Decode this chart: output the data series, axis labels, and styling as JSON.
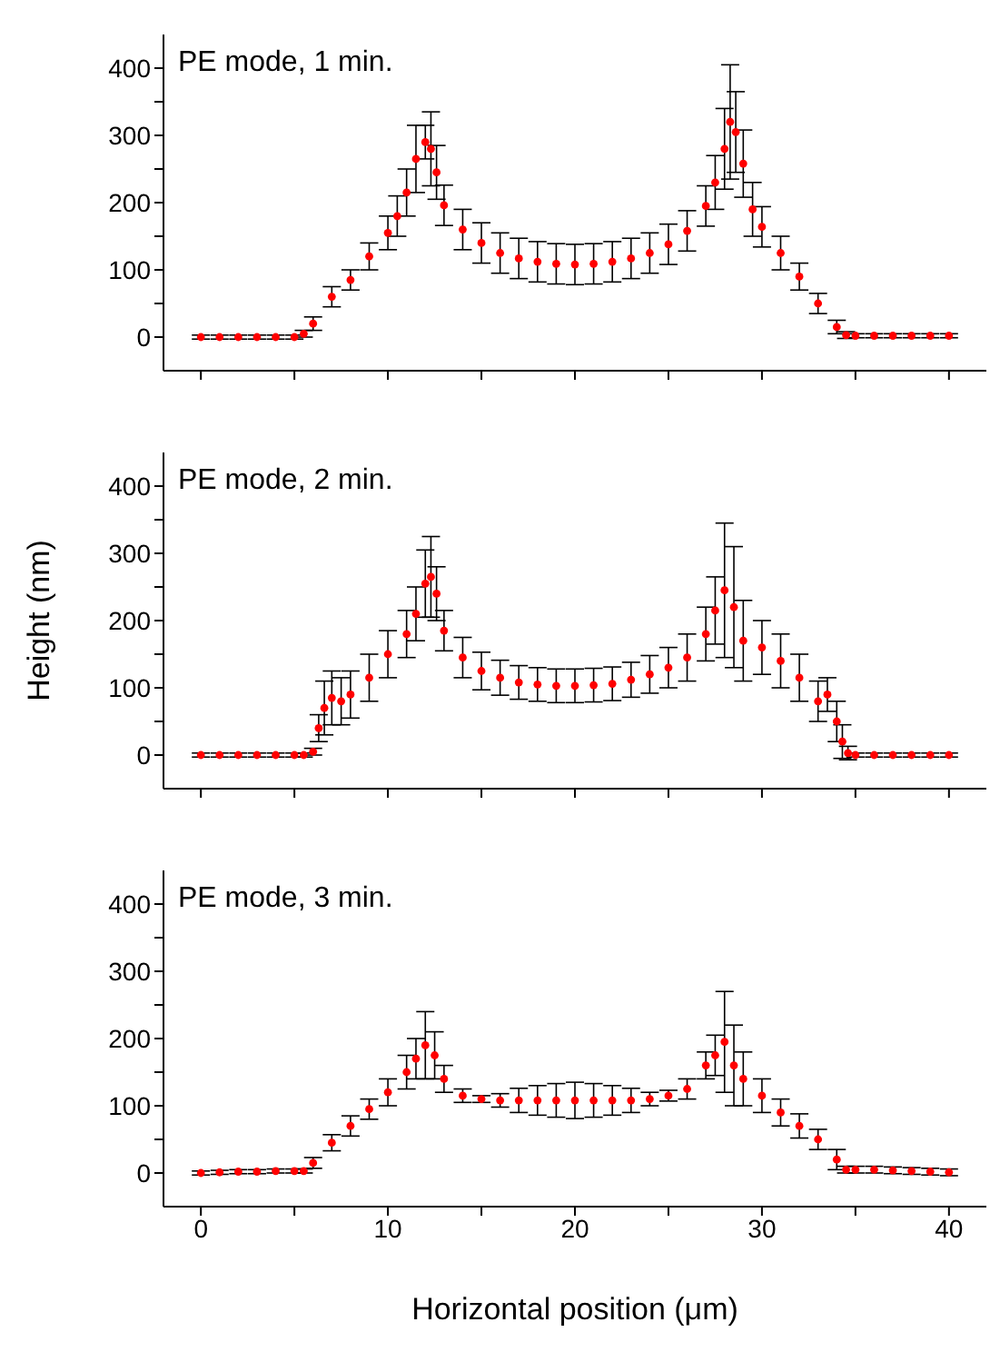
{
  "chart_data": [
    {
      "type": "scatter",
      "title": "PE mode, 1 min.",
      "color": "#ff0000",
      "marker": "circle",
      "xlim": [
        -2,
        42
      ],
      "ylim": [
        -50,
        450
      ],
      "xticks": [
        0,
        {
          "value": 5,
          "label": null
        },
        10,
        {
          "value": 15,
          "label": null
        },
        20,
        {
          "value": 25,
          "label": null
        },
        30,
        {
          "value": 35,
          "label": null
        },
        40
      ],
      "yticks": [
        0,
        {
          "value": 50,
          "label": null
        },
        100,
        {
          "value": 150,
          "label": null
        },
        200,
        {
          "value": 250,
          "label": null
        },
        300,
        {
          "value": 350,
          "label": null
        },
        400
      ],
      "tick_labels": "y",
      "x": [
        0,
        1,
        2,
        3,
        4,
        5,
        5.5,
        6,
        7,
        8,
        9,
        10,
        10.5,
        11,
        11.5,
        12,
        12.3,
        12.6,
        13,
        14,
        15,
        16,
        17,
        18,
        19,
        20,
        21,
        22,
        23,
        24,
        25,
        26,
        27,
        27.5,
        28,
        28.3,
        28.6,
        29,
        29.5,
        30,
        31,
        32,
        33,
        34,
        34.5,
        35,
        36,
        37,
        38,
        39,
        40
      ],
      "values": [
        0,
        0,
        0,
        0,
        0,
        0,
        5,
        20,
        60,
        85,
        120,
        155,
        180,
        215,
        265,
        290,
        280,
        245,
        196,
        160,
        140,
        125,
        117,
        112,
        109,
        108,
        109,
        112,
        117,
        125,
        138,
        158,
        195,
        230,
        280,
        320,
        305,
        258,
        190,
        164,
        125,
        90,
        50,
        15,
        3,
        2,
        2,
        2,
        2,
        2,
        2
      ],
      "errors": [
        3,
        3,
        3,
        3,
        3,
        3,
        5,
        10,
        15,
        15,
        20,
        25,
        30,
        35,
        50,
        25,
        55,
        40,
        30,
        30,
        30,
        30,
        30,
        30,
        30,
        30,
        30,
        30,
        30,
        30,
        30,
        30,
        30,
        40,
        60,
        85,
        60,
        50,
        40,
        30,
        25,
        20,
        15,
        10,
        5,
        3,
        3,
        3,
        3,
        3,
        3
      ]
    },
    {
      "type": "scatter",
      "title": "PE mode, 2 min.",
      "ylabel": "Height (nm)",
      "color": "#ff0000",
      "marker": "circle",
      "xlim": [
        -2,
        42
      ],
      "ylim": [
        -50,
        450
      ],
      "xticks": [
        0,
        {
          "value": 5,
          "label": null
        },
        10,
        {
          "value": 15,
          "label": null
        },
        20,
        {
          "value": 25,
          "label": null
        },
        30,
        {
          "value": 35,
          "label": null
        },
        40
      ],
      "yticks": [
        0,
        {
          "value": 50,
          "label": null
        },
        100,
        {
          "value": 150,
          "label": null
        },
        200,
        {
          "value": 250,
          "label": null
        },
        300,
        {
          "value": 350,
          "label": null
        },
        400
      ],
      "tick_labels": "y",
      "x": [
        0,
        1,
        2,
        3,
        4,
        5,
        5.5,
        6,
        6.3,
        6.6,
        7,
        7.5,
        8,
        9,
        10,
        11,
        11.5,
        12,
        12.3,
        12.6,
        13,
        14,
        15,
        16,
        17,
        18,
        19,
        20,
        21,
        22,
        23,
        24,
        25,
        26,
        27,
        27.5,
        28,
        28.5,
        29,
        30,
        31,
        32,
        33,
        33.5,
        34,
        34.3,
        34.6,
        35,
        36,
        37,
        38,
        39,
        40
      ],
      "values": [
        0,
        0,
        0,
        0,
        0,
        0,
        0,
        5,
        40,
        70,
        85,
        80,
        90,
        115,
        150,
        180,
        210,
        255,
        265,
        240,
        185,
        145,
        125,
        115,
        108,
        105,
        103,
        103,
        104,
        106,
        112,
        120,
        130,
        145,
        180,
        215,
        245,
        220,
        170,
        160,
        140,
        115,
        80,
        90,
        50,
        20,
        3,
        0,
        0,
        0,
        0,
        0,
        0
      ],
      "errors": [
        3,
        3,
        3,
        3,
        3,
        3,
        3,
        5,
        20,
        40,
        40,
        35,
        35,
        35,
        35,
        35,
        40,
        50,
        60,
        40,
        30,
        30,
        28,
        26,
        25,
        25,
        25,
        25,
        25,
        25,
        26,
        28,
        30,
        35,
        40,
        50,
        100,
        90,
        60,
        40,
        40,
        35,
        30,
        25,
        30,
        25,
        10,
        3,
        3,
        3,
        3,
        3,
        3
      ]
    },
    {
      "type": "scatter",
      "title": "PE mode, 3 min.",
      "xlabel": "Horizontal position (μm)",
      "color": "#ff0000",
      "marker": "circle",
      "xlim": [
        -2,
        42
      ],
      "ylim": [
        -50,
        450
      ],
      "xticks": [
        0,
        {
          "value": 5,
          "label": null
        },
        10,
        {
          "value": 15,
          "label": null
        },
        20,
        {
          "value": 25,
          "label": null
        },
        30,
        {
          "value": 35,
          "label": null
        },
        40
      ],
      "yticks": [
        0,
        {
          "value": 50,
          "label": null
        },
        100,
        {
          "value": 150,
          "label": null
        },
        200,
        {
          "value": 250,
          "label": null
        },
        300,
        {
          "value": 350,
          "label": null
        },
        400
      ],
      "x": [
        0,
        1,
        2,
        3,
        4,
        5,
        5.5,
        6,
        7,
        8,
        9,
        10,
        11,
        11.5,
        12,
        12.5,
        13,
        14,
        15,
        16,
        17,
        18,
        19,
        20,
        21,
        22,
        23,
        24,
        25,
        26,
        27,
        27.5,
        28,
        28.5,
        29,
        30,
        31,
        32,
        33,
        34,
        34.5,
        35,
        36,
        37,
        38,
        39,
        40
      ],
      "values": [
        0,
        1,
        2,
        2,
        3,
        3,
        3,
        15,
        45,
        70,
        95,
        120,
        150,
        170,
        190,
        175,
        140,
        115,
        110,
        108,
        108,
        108,
        108,
        108,
        108,
        108,
        108,
        110,
        115,
        125,
        160,
        175,
        195,
        160,
        140,
        115,
        90,
        70,
        50,
        20,
        5,
        5,
        5,
        4,
        3,
        2,
        1
      ],
      "errors": [
        3,
        3,
        3,
        3,
        3,
        3,
        3,
        8,
        12,
        15,
        15,
        20,
        25,
        30,
        50,
        35,
        20,
        10,
        5,
        10,
        18,
        22,
        25,
        27,
        25,
        22,
        18,
        10,
        8,
        15,
        20,
        30,
        75,
        60,
        40,
        25,
        20,
        18,
        15,
        15,
        5,
        5,
        5,
        5,
        5,
        5,
        5
      ]
    }
  ]
}
